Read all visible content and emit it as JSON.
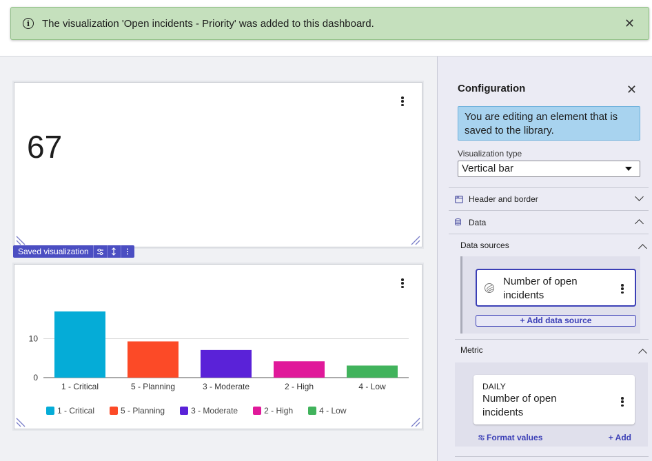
{
  "toast": {
    "message": "The visualization 'Open incidents - Priority' was added to this dashboard.",
    "info_glyph": "i",
    "close_glyph": "✕"
  },
  "widget_single": {
    "value": "67"
  },
  "saved_bar": {
    "label": "Saved visualization"
  },
  "chart_data": {
    "type": "bar",
    "categories": [
      "1 - Critical",
      "5 - Planning",
      "3 - Moderate",
      "2 - High",
      "4 - Low"
    ],
    "values": [
      17,
      9.3,
      7.1,
      4.2,
      3.1
    ],
    "colors": [
      "#05acd7",
      "#fc4a27",
      "#5a22d8",
      "#e0199a",
      "#41b35c"
    ],
    "yticks": [
      0,
      10
    ],
    "ylim": [
      0,
      20
    ],
    "legend_position": "bottom",
    "grid": true
  },
  "panel": {
    "title": "Configuration",
    "close_glyph": "✕",
    "info": "You are editing an element that is saved to the library.",
    "vis_type_label": "Visualization type",
    "vis_type_value": "Vertical bar",
    "header_border": "Header and border",
    "data": "Data",
    "data_sources": "Data sources",
    "ds_name": "Number of open incidents",
    "add_ds": "+ Add data source",
    "metric": "Metric",
    "metric_cap": "DAILY",
    "metric_name": "Number of open incidents",
    "format_values": "Format values",
    "add_metric": "+ Add"
  }
}
